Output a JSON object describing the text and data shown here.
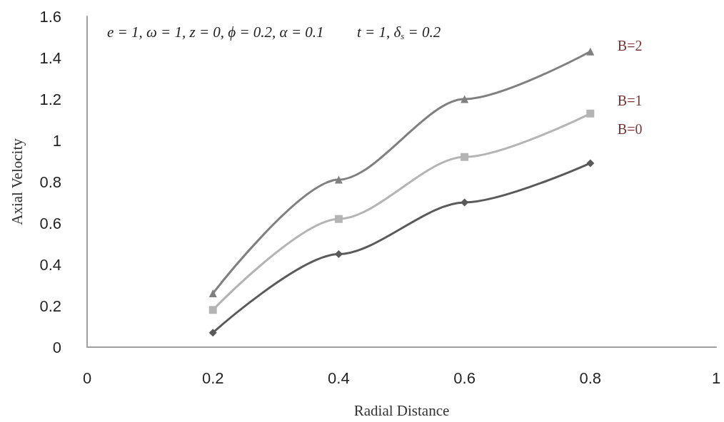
{
  "chart_data": {
    "type": "line",
    "xlabel": "Radial Distance",
    "ylabel": "Axial Velocity",
    "x": [
      0.2,
      0.4,
      0.6,
      0.8
    ],
    "series": [
      {
        "name": "B=2",
        "color": "#808080",
        "marker": "triangle",
        "values": [
          0.26,
          0.81,
          1.2,
          1.43
        ]
      },
      {
        "name": "B=1",
        "color": "#b4b4b4",
        "marker": "square",
        "values": [
          0.18,
          0.62,
          0.92,
          1.13
        ]
      },
      {
        "name": "B=0",
        "color": "#5a5a5a",
        "marker": "diamond",
        "values": [
          0.07,
          0.45,
          0.7,
          0.89
        ]
      }
    ],
    "annotations": [
      "e = 1, ω = 1, z = 0, ϕ = 0.2, α = 0.1",
      "t = 1, δ$_{s}$ = 0.2"
    ],
    "xlim": [
      0,
      1
    ],
    "xticks": [
      0,
      0.2,
      0.4,
      0.6,
      0.8,
      1
    ],
    "ylim": [
      0,
      1.6
    ],
    "yticks": [
      0,
      0.2,
      0.4,
      0.6,
      0.8,
      1,
      1.2,
      1.4,
      1.6
    ],
    "grid": false,
    "legend": false,
    "line_style": "solid"
  }
}
